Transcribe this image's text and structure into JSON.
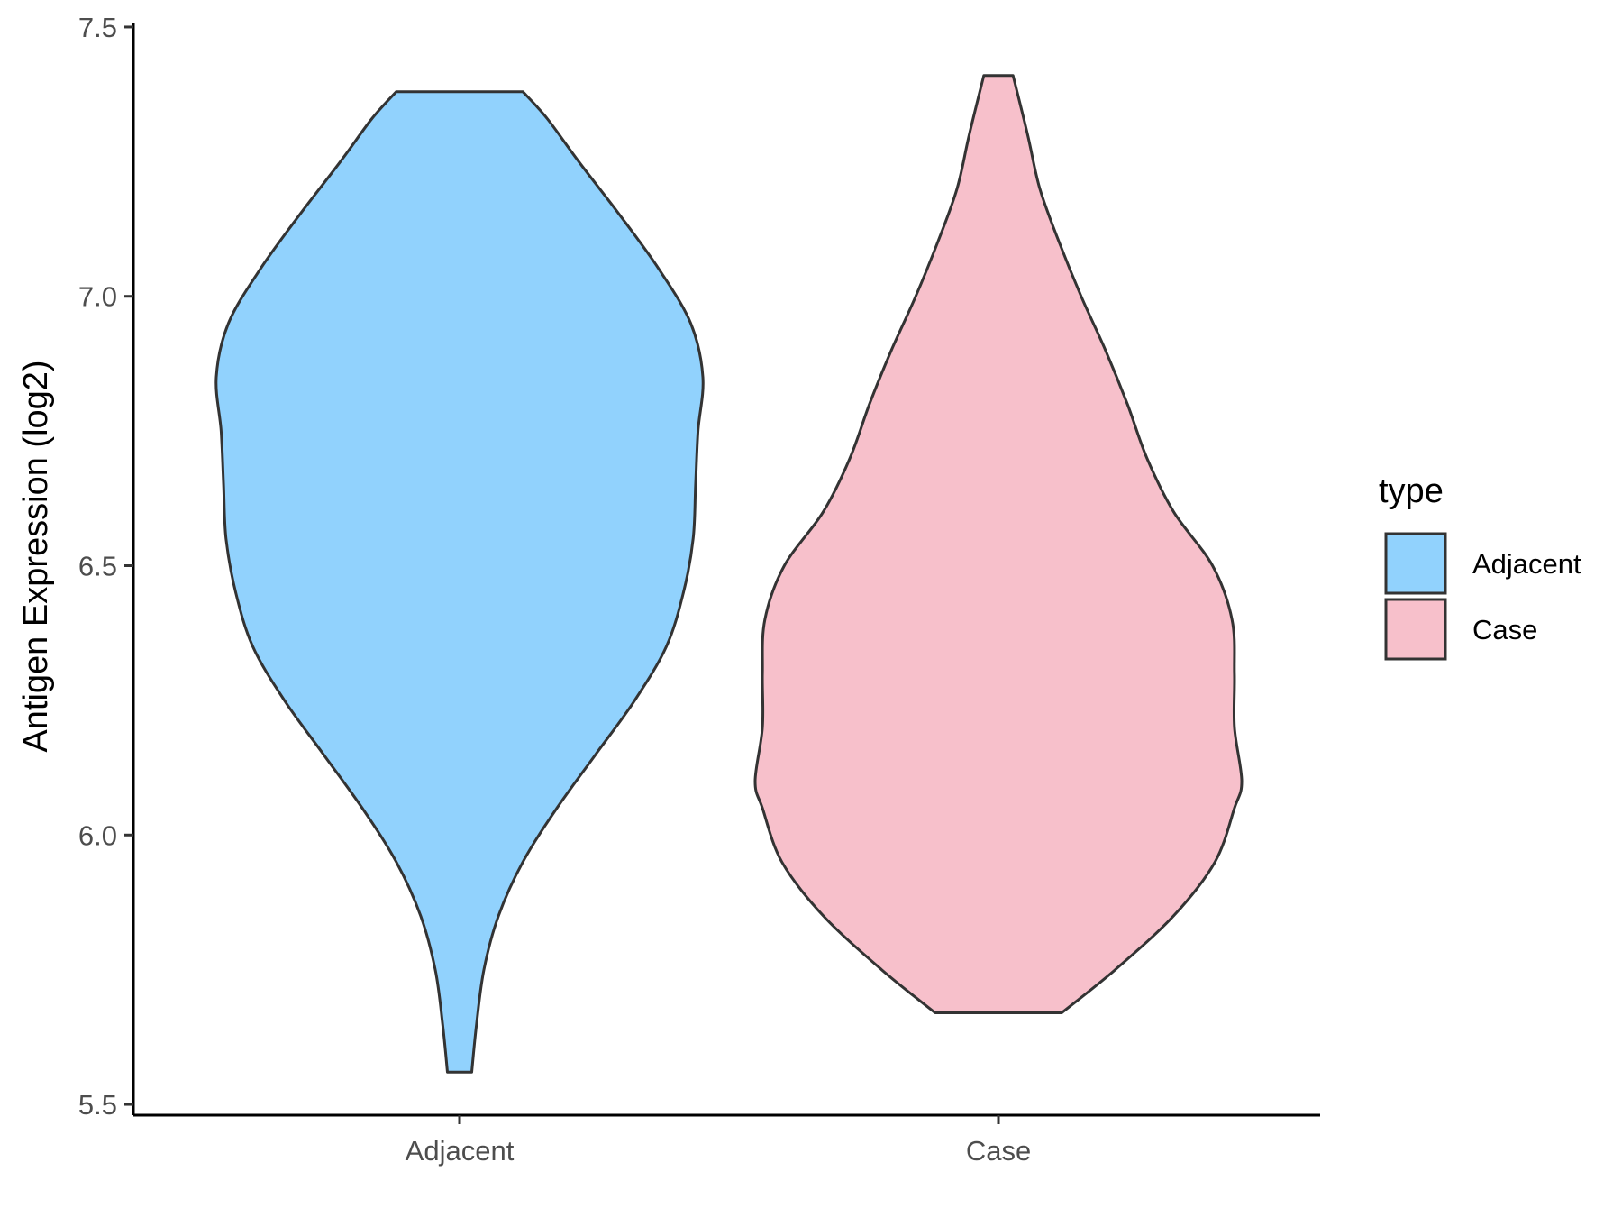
{
  "chart_data": {
    "type": "violin",
    "title": "",
    "xlabel": "",
    "ylabel": "Antigen Expression (log2)",
    "categories": [
      "Adjacent",
      "Case"
    ],
    "ylim": [
      5.48,
      7.52
    ],
    "yticks": [
      "5.5",
      "6.0",
      "6.5",
      "7.0",
      "7.5"
    ],
    "ytick_values": [
      5.5,
      6.0,
      6.5,
      7.0,
      7.5
    ],
    "grid": false,
    "legend": {
      "title": "type",
      "position": "right",
      "entries": [
        "Adjacent",
        "Case"
      ]
    },
    "series": [
      {
        "name": "Adjacent",
        "color": "#91d2fd",
        "range": [
          5.56,
          7.38
        ],
        "density_profile": [
          [
            5.56,
            0.05
          ],
          [
            5.65,
            0.07
          ],
          [
            5.75,
            0.1
          ],
          [
            5.85,
            0.16
          ],
          [
            5.95,
            0.26
          ],
          [
            6.05,
            0.4
          ],
          [
            6.15,
            0.56
          ],
          [
            6.25,
            0.72
          ],
          [
            6.35,
            0.85
          ],
          [
            6.45,
            0.92
          ],
          [
            6.55,
            0.96
          ],
          [
            6.65,
            0.97
          ],
          [
            6.75,
            0.98
          ],
          [
            6.85,
            1.0
          ],
          [
            6.95,
            0.95
          ],
          [
            7.05,
            0.82
          ],
          [
            7.15,
            0.66
          ],
          [
            7.25,
            0.49
          ],
          [
            7.33,
            0.36
          ],
          [
            7.38,
            0.26
          ]
        ]
      },
      {
        "name": "Case",
        "color": "#f7c0cb",
        "range": [
          5.67,
          7.41
        ],
        "density_profile": [
          [
            5.67,
            0.26
          ],
          [
            5.75,
            0.48
          ],
          [
            5.85,
            0.72
          ],
          [
            5.95,
            0.89
          ],
          [
            6.05,
            0.97
          ],
          [
            6.1,
            1.0
          ],
          [
            6.2,
            0.97
          ],
          [
            6.3,
            0.97
          ],
          [
            6.4,
            0.96
          ],
          [
            6.5,
            0.88
          ],
          [
            6.6,
            0.72
          ],
          [
            6.7,
            0.61
          ],
          [
            6.8,
            0.53
          ],
          [
            6.9,
            0.44
          ],
          [
            7.0,
            0.34
          ],
          [
            7.1,
            0.25
          ],
          [
            7.2,
            0.17
          ],
          [
            7.3,
            0.12
          ],
          [
            7.41,
            0.06
          ]
        ]
      }
    ]
  }
}
